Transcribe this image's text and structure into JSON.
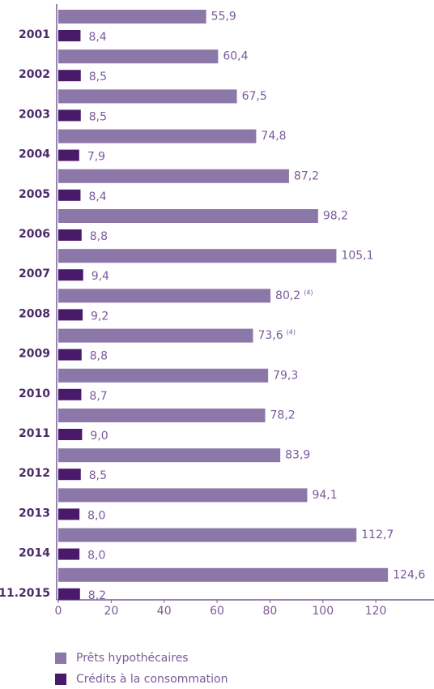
{
  "chart_data": {
    "type": "bar",
    "orientation": "horizontal",
    "categories": [
      "2001",
      "2002",
      "2003",
      "2004",
      "2005",
      "2006",
      "2007",
      "2008",
      "2009",
      "2010",
      "2011",
      "2012",
      "2013",
      "2014",
      "11.2015"
    ],
    "series": [
      {
        "name": "Prêts hypothécaires",
        "color": "#8c78a8",
        "values": [
          55.9,
          60.4,
          67.5,
          74.8,
          87.2,
          98.2,
          105.1,
          80.2,
          73.6,
          79.3,
          78.2,
          83.9,
          94.1,
          112.7,
          124.6
        ],
        "value_labels": [
          "55,9",
          "60,4",
          "67,5",
          "74,8",
          "87,2",
          "98,2",
          "105,1",
          "80,2",
          "73,6",
          "79,3",
          "78,2",
          "83,9",
          "94,1",
          "112,7",
          "124,6"
        ],
        "annotations": [
          null,
          null,
          null,
          null,
          null,
          null,
          null,
          "(4)",
          "(4)",
          null,
          null,
          null,
          null,
          null,
          null
        ]
      },
      {
        "name": "Crédits à la consommation",
        "color": "#4a1a6a",
        "values": [
          8.4,
          8.5,
          8.5,
          7.9,
          8.4,
          8.8,
          9.4,
          9.2,
          8.8,
          8.7,
          9.0,
          8.5,
          8.0,
          8.0,
          8.2
        ],
        "value_labels": [
          "8,4",
          "8,5",
          "8,5",
          "7,9",
          "8,4",
          "8,8",
          "9,4",
          "9,2",
          "8,8",
          "8,7",
          "9,0",
          "8,5",
          "8,0",
          "8,0",
          "8,2"
        ]
      }
    ],
    "xlim": [
      0,
      142
    ],
    "xticks": [
      0,
      20,
      40,
      60,
      80,
      100,
      120
    ]
  }
}
